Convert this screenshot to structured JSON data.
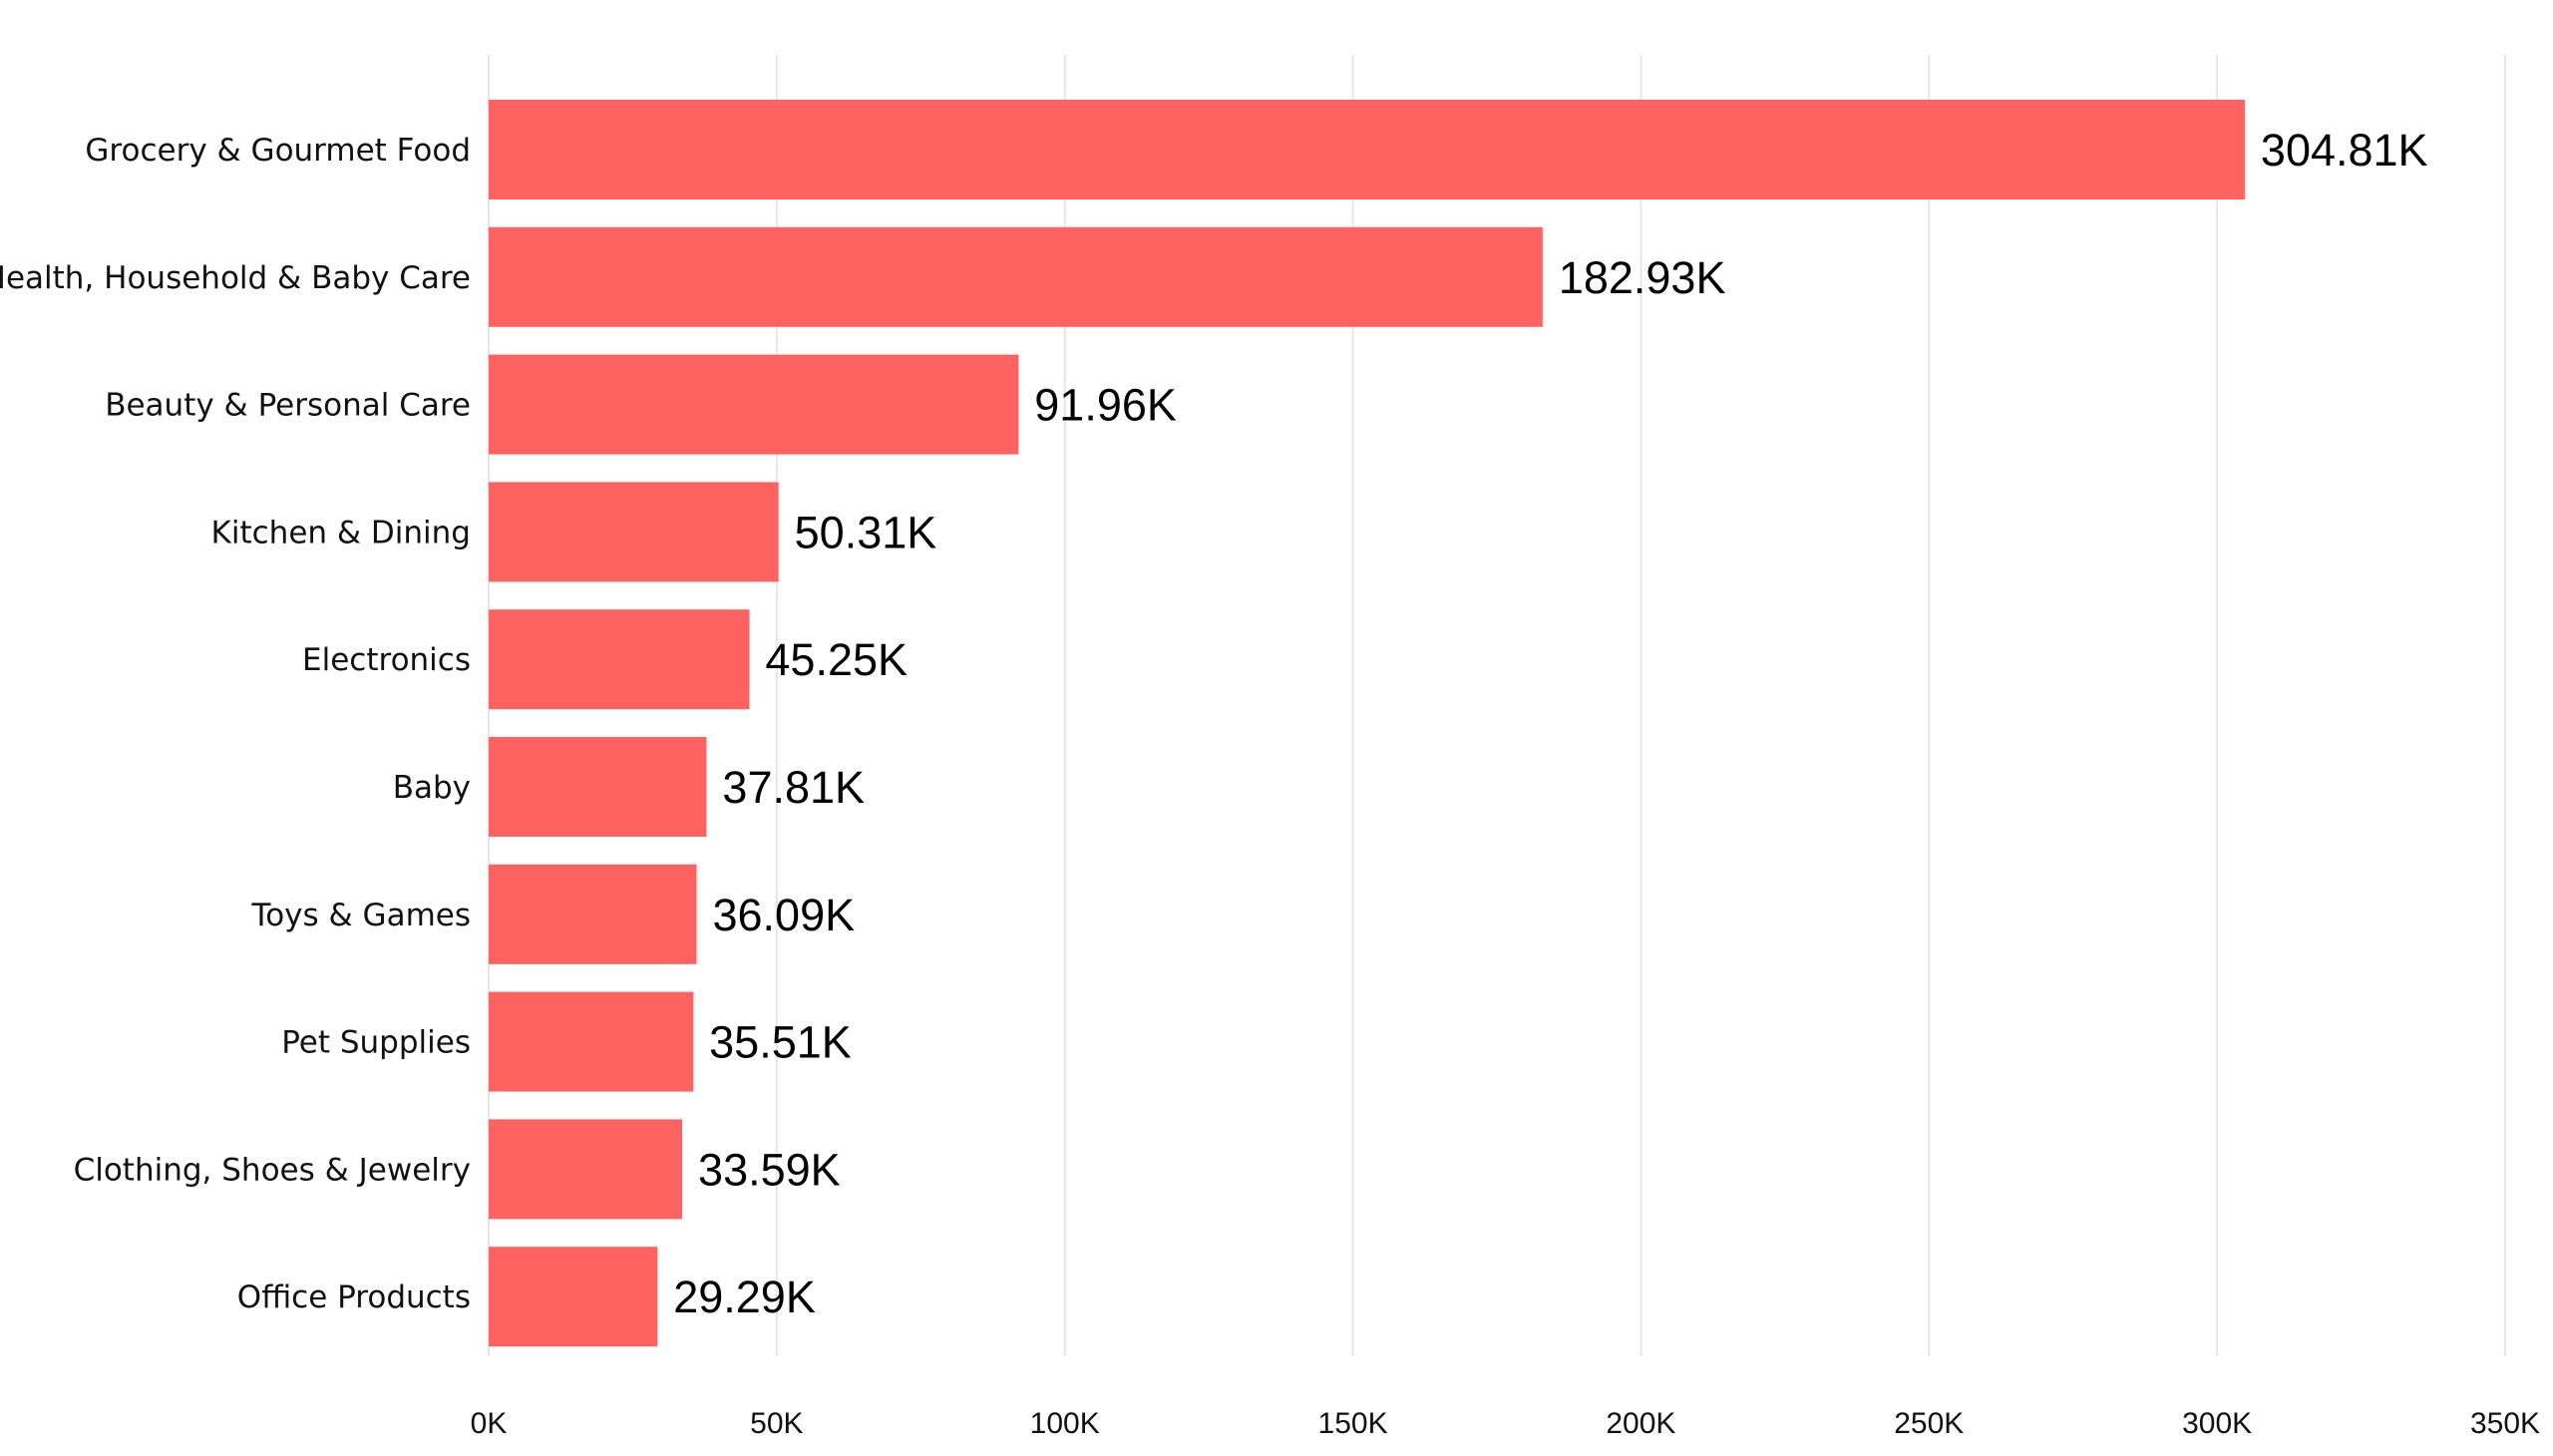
{
  "chart_data": {
    "type": "bar",
    "orientation": "horizontal",
    "title": "",
    "xlabel": "",
    "ylabel": "",
    "categories": [
      "Grocery & Gourmet Food",
      "Health, Household & Baby Care",
      "Beauty & Personal Care",
      "Kitchen & Dining",
      "Electronics",
      "Baby",
      "Toys & Games",
      "Pet Supplies",
      "Clothing, Shoes & Jewelry",
      "Office Products"
    ],
    "values": [
      304810,
      182930,
      91960,
      50310,
      45250,
      37810,
      36090,
      35510,
      33590,
      29290
    ],
    "data_labels": [
      "304.81K",
      "182.93K",
      "91.96K",
      "50.31K",
      "45.25K",
      "37.81K",
      "36.09K",
      "35.51K",
      "33.59K",
      "29.29K"
    ],
    "xlim": [
      0,
      350000
    ],
    "x_ticks": [
      0,
      50000,
      100000,
      150000,
      200000,
      250000,
      300000,
      350000
    ],
    "x_tick_labels": [
      "0K",
      "50K",
      "100K",
      "150K",
      "200K",
      "250K",
      "300K",
      "350K"
    ],
    "grid": "vertical",
    "legend": "none",
    "bar_color": "#ff6361"
  }
}
